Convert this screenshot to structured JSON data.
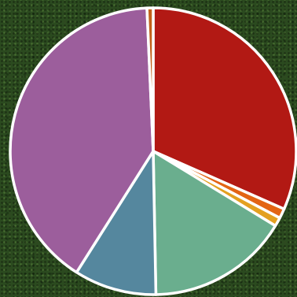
{
  "chart_data": {
    "type": "pie",
    "start_angle_deg": 0,
    "direction": "clockwise",
    "slices": [
      {
        "value": 31.6,
        "color": "#b21914"
      },
      {
        "value": 1.1,
        "color": "#e36414"
      },
      {
        "value": 1.0,
        "color": "#e3a020"
      },
      {
        "value": 16.0,
        "color": "#6aae8e"
      },
      {
        "value": 9.3,
        "color": "#55879e"
      },
      {
        "value": 40.3,
        "color": "#9c5e9c"
      },
      {
        "value": 0.7,
        "color": "#c2601a"
      }
    ]
  }
}
